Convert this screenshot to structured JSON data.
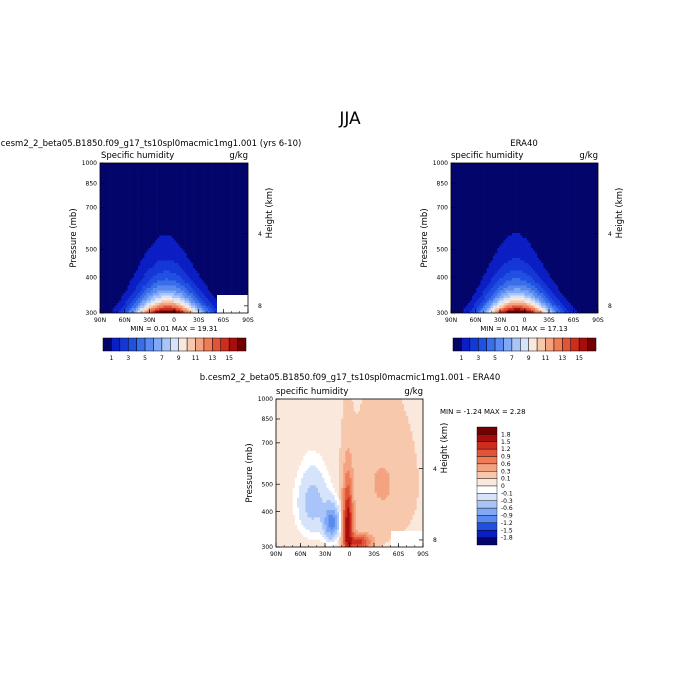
{
  "page": {
    "title": "JJA"
  },
  "panels": [
    {
      "id": "model",
      "header": "b.cesm2_2_beta05.B1850.f09_g17_ts10spl0macmic1mg1.001 (yrs 6-10)",
      "left_label": "Specific humidity",
      "right_label": "g/kg",
      "stats": "MIN =   0.01   MAX =  19.31"
    },
    {
      "id": "obs",
      "header": "ERA40",
      "left_label": "specific humidity",
      "right_label": "g/kg",
      "stats": "MIN =   0.01   MAX =  17.13"
    },
    {
      "id": "diff",
      "header": "b.cesm2_2_beta05.B1850.f09_g17_ts10spl0macmic1mg1.001 - ERA40",
      "left_label": "specific humidity",
      "right_label": "g/kg",
      "stats": "MIN =  -1.24   MAX =   2.28"
    }
  ],
  "chart_data": [
    {
      "type": "heatmap",
      "title": "b.cesm2_2_beta05.B1850.f09_g17_ts10spl0macmic1mg1.001 (yrs 6-10)",
      "variable": "Specific humidity",
      "units": "g/kg",
      "xlabel": "",
      "ylabel": "Pressure (mb)",
      "y2label": "Height (km)",
      "x_ticks": [
        "90N",
        "60N",
        "30N",
        "0",
        "30S",
        "60S",
        "90S"
      ],
      "y_ticks": [
        300,
        400,
        500,
        700,
        850,
        1000
      ],
      "y2_ticks": [
        8,
        4
      ],
      "ylim": [
        1000,
        300
      ],
      "y_scale": "log",
      "colorbar_labels": [
        "1",
        "3",
        "5",
        "7",
        "9",
        "11",
        "13",
        "15"
      ],
      "min": 0.01,
      "max": 19.31,
      "peak_latitude": 5,
      "colors": [
        "#03056b",
        "#0a1ec4",
        "#1437d6",
        "#2050e2",
        "#3a6ee9",
        "#5a8af0",
        "#80a8f5",
        "#a8c4f8",
        "#d6e4fb",
        "#fbe8dc",
        "#f8c8ac",
        "#f4a380",
        "#ee7c57",
        "#e0543a",
        "#cc2d1c",
        "#a80d0d",
        "#730000"
      ]
    },
    {
      "type": "heatmap",
      "title": "ERA40",
      "variable": "specific humidity",
      "units": "g/kg",
      "xlabel": "",
      "ylabel": "Pressure (mb)",
      "y2label": "Height (km)",
      "x_ticks": [
        "90N",
        "60N",
        "30N",
        "0",
        "30S",
        "60S",
        "90S"
      ],
      "y_ticks": [
        300,
        400,
        500,
        700,
        850,
        1000
      ],
      "y2_ticks": [
        8,
        4
      ],
      "ylim": [
        1000,
        300
      ],
      "y_scale": "log",
      "colorbar_labels": [
        "1",
        "3",
        "5",
        "7",
        "9",
        "11",
        "13",
        "15"
      ],
      "min": 0.01,
      "max": 17.13,
      "peak_latitude": 5,
      "colors": [
        "#03056b",
        "#0a1ec4",
        "#1437d6",
        "#2050e2",
        "#3a6ee9",
        "#5a8af0",
        "#80a8f5",
        "#a8c4f8",
        "#d6e4fb",
        "#fbe8dc",
        "#f8c8ac",
        "#f4a380",
        "#ee7c57",
        "#e0543a",
        "#cc2d1c",
        "#a80d0d",
        "#730000"
      ]
    },
    {
      "type": "heatmap",
      "title": "b.cesm2_2_beta05.B1850.f09_g17_ts10spl0macmic1mg1.001 - ERA40",
      "variable": "specific humidity",
      "units": "g/kg",
      "xlabel": "",
      "ylabel": "Pressure (mb)",
      "y2label": "Height (km)",
      "x_ticks": [
        "90N",
        "60N",
        "30N",
        "0",
        "30S",
        "60S",
        "90S"
      ],
      "y_ticks": [
        300,
        400,
        500,
        700,
        850,
        1000
      ],
      "y2_ticks": [
        8,
        4
      ],
      "ylim": [
        1000,
        300
      ],
      "y_scale": "log",
      "colorbar_labels": [
        "1.8",
        "1.5",
        "1.2",
        "0.9",
        "0.6",
        "0.3",
        "0.1",
        "0",
        "-0.1",
        "-0.3",
        "-0.6",
        "-0.9",
        "-1.2",
        "-1.5",
        "-1.8"
      ],
      "min": -1.24,
      "max": 2.28,
      "colors": [
        "#730000",
        "#a80d0d",
        "#cc2d1c",
        "#e0543a",
        "#ee7c57",
        "#f4a380",
        "#f8c8ac",
        "#fbe8dc",
        "#ffffff",
        "#d6e4fb",
        "#a8c4f8",
        "#80a8f5",
        "#5a8af0",
        "#2050e2",
        "#0a1ec4",
        "#03056b"
      ]
    }
  ]
}
